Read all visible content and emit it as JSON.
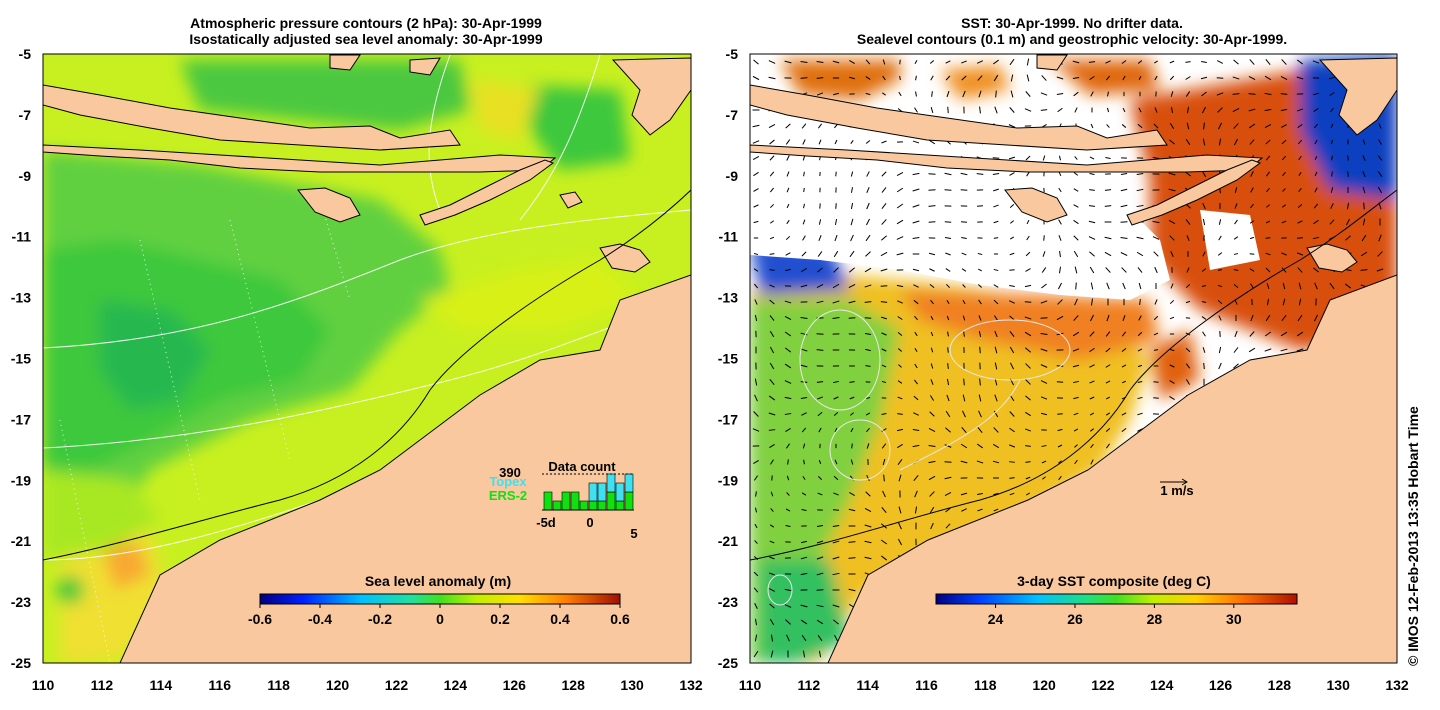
{
  "left_panel": {
    "title_line1": "Atmospheric pressure contours (2 hPa): 30-Apr-1999",
    "title_line2": "Isostatically adjusted sea level anomaly: 30-Apr-1999",
    "colorbar": {
      "title": "Sea level anomaly (m)",
      "ticks": [
        "-0.6",
        "-0.4",
        "-0.2",
        "0",
        "0.2",
        "0.4",
        "0.6"
      ]
    },
    "data_count": {
      "title": "Data count",
      "max_label": "390",
      "topex_label": "Topex",
      "ers2_label": "ERS-2",
      "x_ticks": [
        "-5d",
        "0",
        "5"
      ],
      "topex_color": "#40e0f0",
      "ers2_color": "#10e010",
      "topex_counts": [
        0,
        0,
        0,
        0,
        0,
        2,
        2,
        2,
        2,
        2
      ],
      "ers2_counts": [
        2,
        1,
        2,
        2,
        1,
        1,
        1,
        2,
        1,
        2
      ]
    }
  },
  "right_panel": {
    "title_line1": "SST: 30-Apr-1999. No drifter data.",
    "title_line2": "Sealevel contours (0.1 m) and geostrophic velocity: 30-Apr-1999.",
    "velocity_scale_label": "1 m/s",
    "colorbar": {
      "title": "3-day SST composite (deg C)",
      "ticks": [
        "24",
        "26",
        "28",
        "30"
      ]
    }
  },
  "axes": {
    "x_ticks": [
      "110",
      "112",
      "114",
      "116",
      "118",
      "120",
      "122",
      "124",
      "126",
      "128",
      "130",
      "132"
    ],
    "y_ticks": [
      "-5",
      "-7",
      "-9",
      "-11",
      "-13",
      "-15",
      "-17",
      "-19",
      "-21",
      "-23",
      "-25"
    ]
  },
  "credit": "© IMOS 12-Feb-2013 13:35 Hobart Time",
  "colors": {
    "land": "#f9c89e",
    "sla_background": "#c8f020",
    "sla_green": "#3cc83c",
    "sst_orange": "#e06010"
  }
}
